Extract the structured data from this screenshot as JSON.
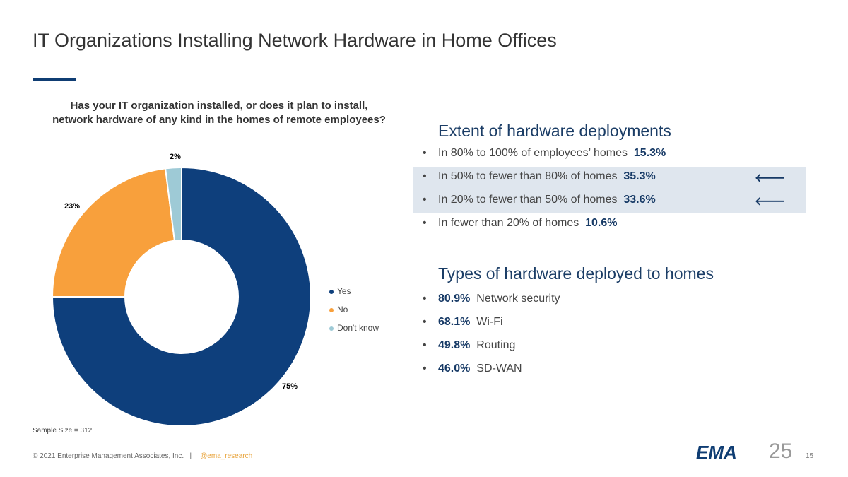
{
  "title": "IT Organizations Installing Network Hardware in Home Offices",
  "chart_data": {
    "type": "pie",
    "title": "Has your IT organization installed, or does it plan to install, network hardware of any kind in the homes of remote employees?",
    "categories": [
      "Yes",
      "No",
      "Don't know"
    ],
    "values": [
      75,
      23,
      2
    ],
    "data_labels": [
      "75%",
      "23%",
      "2%"
    ],
    "colors": [
      "#0e3f7c",
      "#f8a03c",
      "#9ecad6"
    ],
    "donut": true,
    "legend": "right"
  },
  "sample_size": "Sample Size = 312",
  "extent": {
    "heading": "Extent of hardware deployments",
    "items": [
      {
        "text": "In 80% to 100% of employees’ homes",
        "value": "15.3%",
        "highlight": false
      },
      {
        "text": "In 50% to fewer than 80% of homes",
        "value": "35.3%",
        "highlight": true
      },
      {
        "text": "In 20% to fewer than 50% of homes",
        "value": "33.6%",
        "highlight": true
      },
      {
        "text": "In fewer than 20% of homes",
        "value": "10.6%",
        "highlight": false
      }
    ]
  },
  "types": {
    "heading": "Types of hardware deployed to homes",
    "items": [
      {
        "value": "80.9%",
        "text": "Network security"
      },
      {
        "value": "68.1%",
        "text": "Wi-Fi"
      },
      {
        "value": "49.8%",
        "text": "Routing"
      },
      {
        "value": "46.0%",
        "text": "SD-WAN"
      }
    ]
  },
  "bullet": "•",
  "arrow": "🡐",
  "footer": {
    "copyright": "© 2021 Enterprise Management Associates, Inc.",
    "sep": "|",
    "link": "@ema_research",
    "logo": "EMA",
    "years": "25",
    "page": "15"
  }
}
